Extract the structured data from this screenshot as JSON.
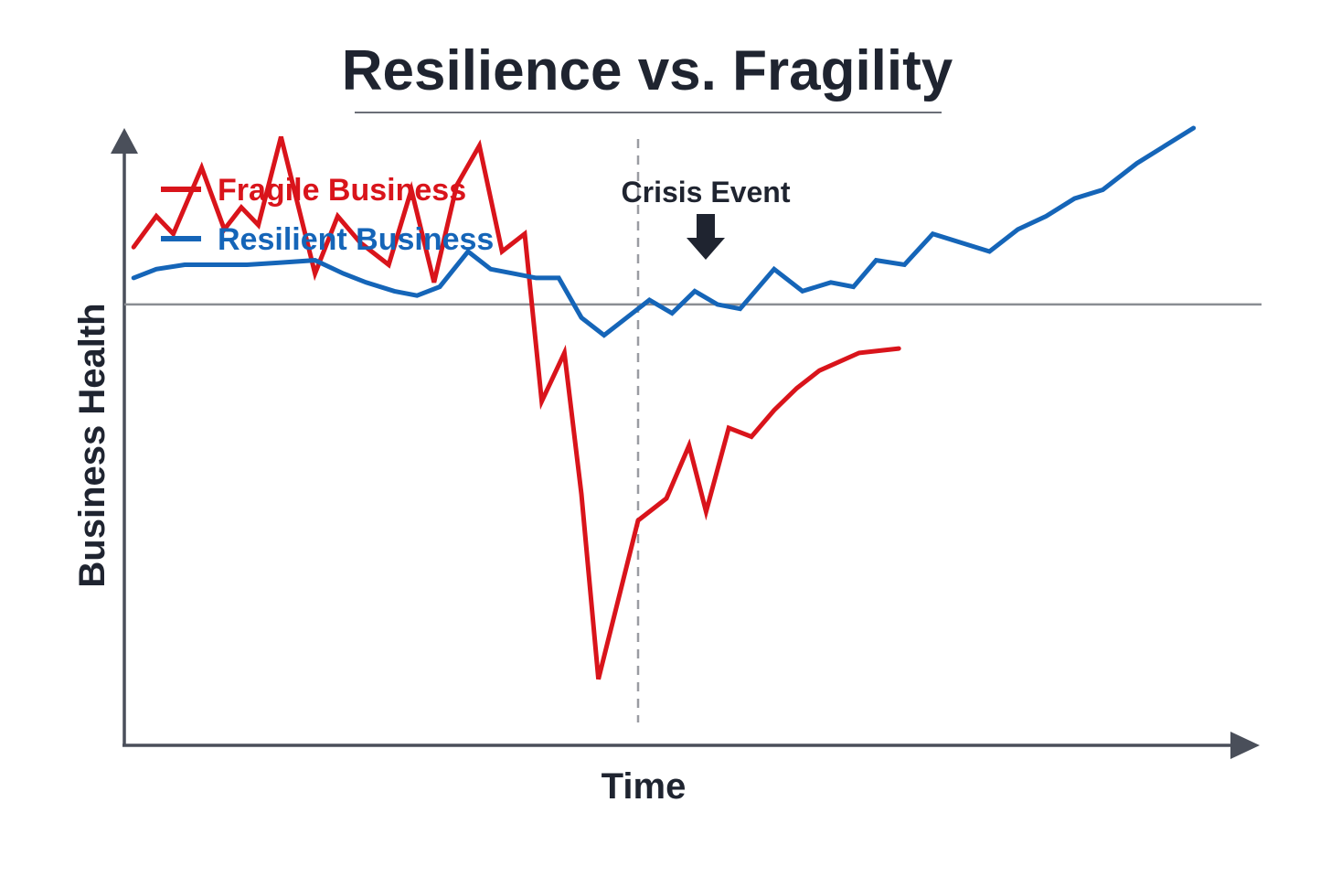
{
  "chart_data": {
    "type": "line",
    "title": "Resilience vs. Fragility",
    "xlabel": "Time",
    "ylabel": "Business Health",
    "xlim": [
      0,
      100
    ],
    "ylim": [
      -100,
      40
    ],
    "grid": false,
    "baseline": 0,
    "legend_position": "top-left",
    "annotations": [
      {
        "text": "Crisis Event",
        "x": 45
      }
    ],
    "series": [
      {
        "name": "Fragile Business",
        "color": "#d9141b",
        "x": [
          0.5,
          2.5,
          4,
          6.5,
          8.5,
          10,
          11.5,
          13.5,
          16.5,
          18.5,
          20.5,
          23,
          25,
          27,
          29,
          31,
          33,
          35,
          36.5,
          38.5,
          40,
          41.5,
          45,
          47.5,
          49.5,
          51,
          53,
          55,
          57,
          59,
          61,
          64.5,
          68
        ],
        "y": [
          13,
          20,
          16,
          31,
          17,
          22,
          18,
          38,
          7,
          20,
          14,
          9,
          26,
          5,
          27,
          36,
          12,
          16,
          -22,
          -11,
          -43,
          -85,
          -49,
          -44,
          -32,
          -47,
          -28,
          -30,
          -24,
          -19,
          -15,
          -11,
          -10
        ]
      },
      {
        "name": "Resilient Business",
        "color": "#1565b8",
        "x": [
          0.5,
          2.5,
          5,
          8,
          10.5,
          13.5,
          16.5,
          19,
          21,
          23.5,
          25.5,
          27.5,
          30,
          32,
          34,
          36,
          38,
          40,
          42,
          44,
          46,
          48,
          50,
          52,
          54,
          57,
          59.5,
          62,
          64,
          66,
          68.5,
          71,
          73.5,
          76,
          78.5,
          81,
          83.5,
          86,
          89,
          91.5,
          94
        ],
        "y": [
          6,
          8,
          9,
          9,
          9,
          9.5,
          10,
          7,
          5,
          3,
          2,
          4,
          12,
          8,
          7,
          6,
          6,
          -3,
          -7,
          -3,
          1,
          -2,
          3,
          0,
          -1,
          8,
          3,
          5,
          4,
          10,
          9,
          16,
          14,
          12,
          17,
          20,
          24,
          26,
          32,
          36,
          40
        ]
      }
    ]
  }
}
